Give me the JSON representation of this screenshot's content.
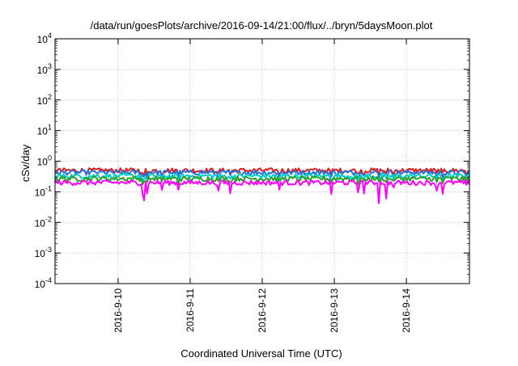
{
  "chart_data": {
    "type": "line",
    "title": "/data/run/goesPlots/archive/2016-09-14/21:00/flux/../bryn/5daysMoon.plot",
    "xlabel": "Coordinated Universal Time (UTC)",
    "ylabel": "cSv/day",
    "yscale": "log",
    "ylim": [
      0.0001,
      10000
    ],
    "xlim": [
      "2016-09-09 03:00",
      "2016-09-14 21:00"
    ],
    "x_ticks": [
      "2016-9-10",
      "2016-9-11",
      "2016-9-12",
      "2016-9-13",
      "2016-9-14"
    ],
    "y_ticks": [
      {
        "base": "10",
        "exp": "-4"
      },
      {
        "base": "10",
        "exp": "-3"
      },
      {
        "base": "10",
        "exp": "-2"
      },
      {
        "base": "10",
        "exp": "-1"
      },
      {
        "base": "10",
        "exp": "0"
      },
      {
        "base": "10",
        "exp": "1"
      },
      {
        "base": "10",
        "exp": "2"
      },
      {
        "base": "10",
        "exp": "3"
      },
      {
        "base": "10",
        "exp": "4"
      }
    ],
    "grid": true,
    "series": [
      {
        "color": "#e41a1c",
        "level": 0.5
      },
      {
        "color": "#2b6fd6",
        "level": 0.43
      },
      {
        "color": "#00cccc",
        "level": 0.33
      },
      {
        "color": "#2ca02c",
        "level": 0.27
      },
      {
        "color": "#ff00ff",
        "level": 0.2
      }
    ]
  }
}
